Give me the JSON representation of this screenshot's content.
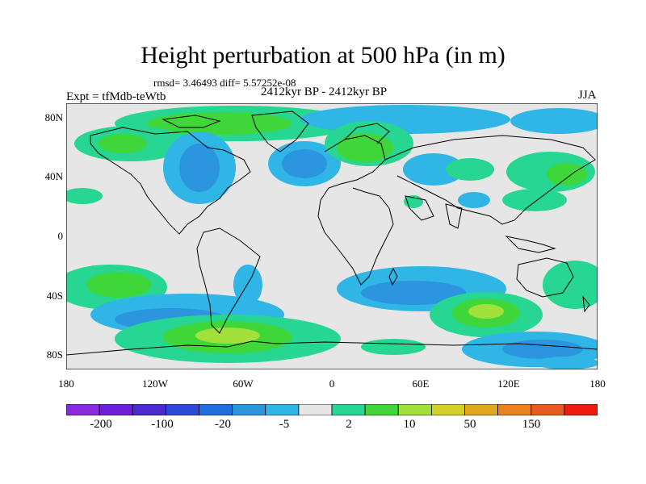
{
  "title": "Height perturbation at 500 hPa (in m)",
  "stats_text": "rmsd= 3.46493 diff= 5.57252e-08",
  "period_text": "2412kyr BP - 2412kyr BP",
  "experiment_label": "Expt = tfMdb-teWtb",
  "season": "JJA",
  "map": {
    "background": "#e6e6e6",
    "lat_ticks": [
      "80N",
      "40N",
      "0",
      "40S",
      "80S"
    ],
    "lon_ticks": [
      "180",
      "120W",
      "60W",
      "0",
      "60E",
      "120E",
      "180"
    ]
  },
  "colorbar": {
    "colors": [
      "#8a2be2",
      "#6a1fd8",
      "#4b2ad0",
      "#2f48d8",
      "#1e6fe0",
      "#2b95e0",
      "#2fb6e6",
      "#e6e6e6",
      "#27d690",
      "#3fd63a",
      "#a2e03a",
      "#d4d02a",
      "#e0a81e",
      "#e88420",
      "#e85a20",
      "#ee1c0e"
    ],
    "labels": [
      "-200",
      "-100",
      "-20",
      "-5",
      "2",
      "10",
      "50",
      "150"
    ]
  }
}
